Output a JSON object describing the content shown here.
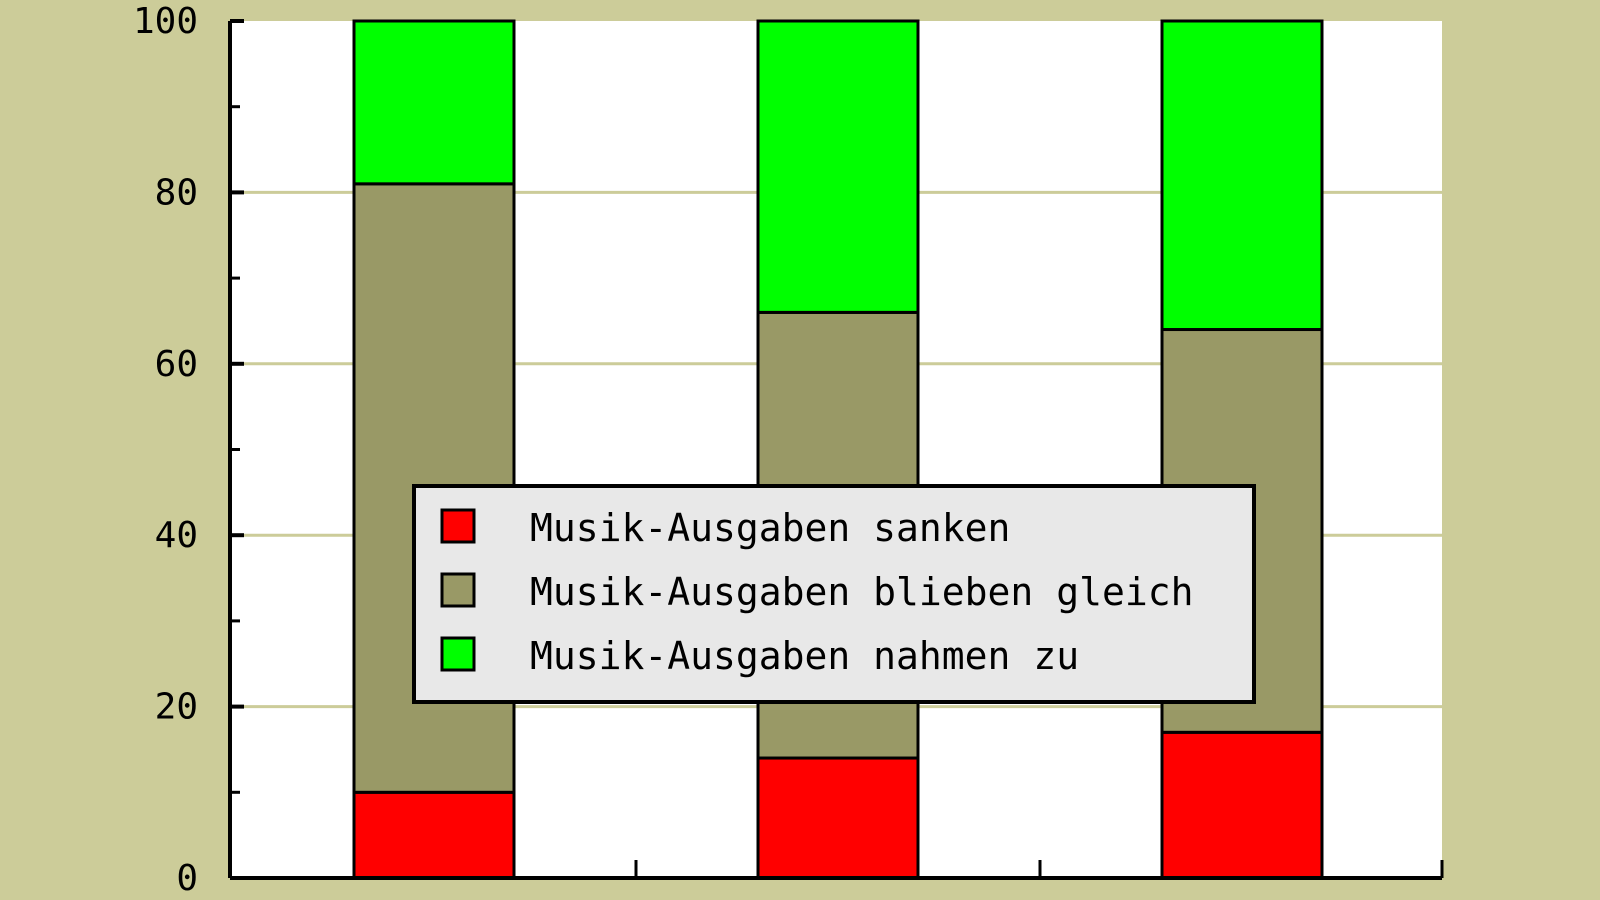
{
  "chart_data": {
    "type": "bar",
    "stacked": true,
    "categories": [
      "",
      "",
      ""
    ],
    "series": [
      {
        "name": "Musik-Ausgaben sanken",
        "color": "#ff0000",
        "values": [
          10,
          14,
          17
        ]
      },
      {
        "name": "Musik-Ausgaben blieben gleich",
        "color": "#999966",
        "values": [
          71,
          52,
          47
        ]
      },
      {
        "name": "Musik-Ausgaben nahmen zu",
        "color": "#00ff00",
        "values": [
          19,
          34,
          36
        ]
      }
    ],
    "title": "",
    "xlabel": "",
    "ylabel": "",
    "ylim": [
      0,
      100
    ],
    "yticks": [
      "0",
      "20",
      "40",
      "60",
      "80",
      "100"
    ],
    "grid": "horizontal",
    "legend": "center",
    "colors": {
      "background": "#cccc99",
      "plot": "#ffffff",
      "grid": "#cccc99",
      "legend_bg": "#e8e8e8"
    }
  }
}
